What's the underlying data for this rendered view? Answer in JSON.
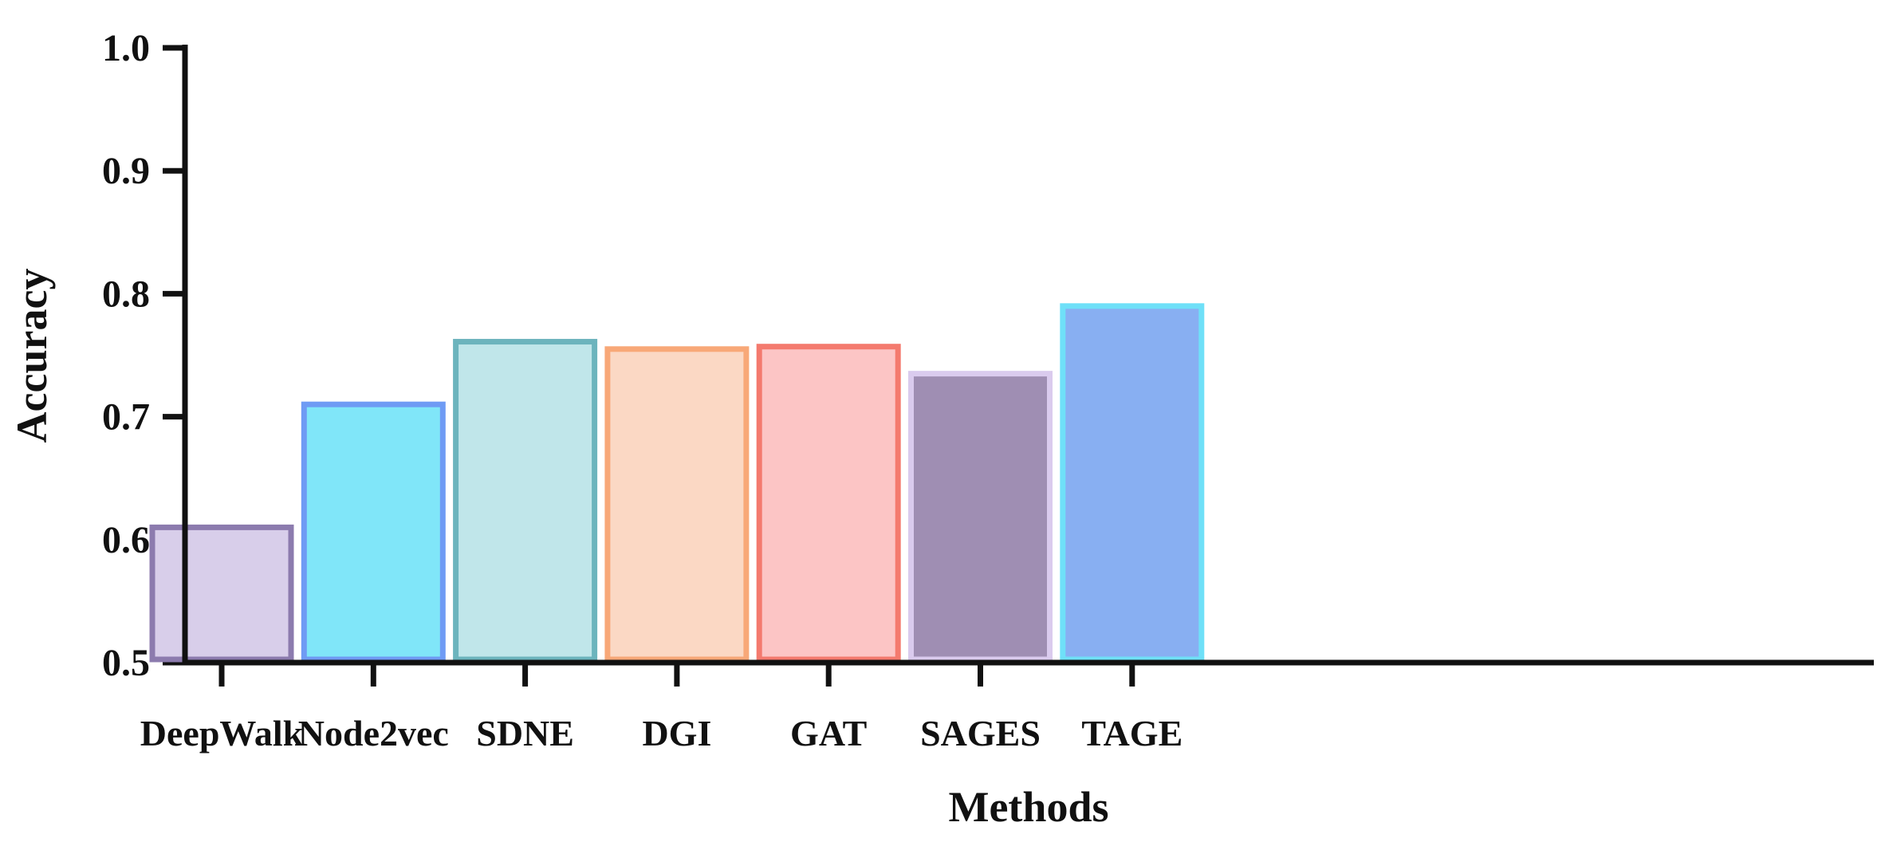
{
  "chart_data": {
    "type": "bar",
    "title": "",
    "xlabel": "Methods",
    "ylabel": "Accuracy",
    "ylim": [
      0.5,
      1.0
    ],
    "yticks": [
      "0.5",
      "0.6",
      "0.7",
      "0.8",
      "0.9",
      "1.0"
    ],
    "grid": false,
    "categories": [
      "DeepWalk",
      "Node2vec",
      "SDNE",
      "DGI",
      "GAT",
      "SAGES",
      "TAGE"
    ],
    "values": [
      0.61,
      0.71,
      0.761,
      0.755,
      0.757,
      0.735,
      0.79
    ],
    "fill_colors": [
      "#d8ceea",
      "#80e6f9",
      "#c0e6ea",
      "#fbd8c4",
      "#fcc5c5",
      "#9f8eb3",
      "#88aff2"
    ],
    "edge_colors": [
      "#8c7bae",
      "#6f9bf4",
      "#6cb4bd",
      "#f8a878",
      "#f47a6e",
      "#dacbee",
      "#6fe0f8"
    ]
  }
}
